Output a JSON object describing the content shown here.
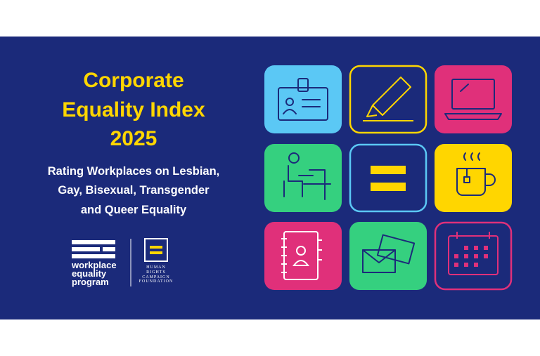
{
  "title": [
    "Corporate",
    "Equality Index",
    "2025"
  ],
  "subtitle": [
    "Rating Workplaces on Lesbian,",
    "Gay, Bisexual, Transgender",
    "and Queer Equality"
  ],
  "logos": {
    "workplace_equality_program": [
      "workplace",
      "equality",
      "program"
    ],
    "human_rights_campaign": [
      "HUMAN",
      "RIGHTS",
      "CAMPAIGN",
      "FOUNDATION"
    ]
  }
}
